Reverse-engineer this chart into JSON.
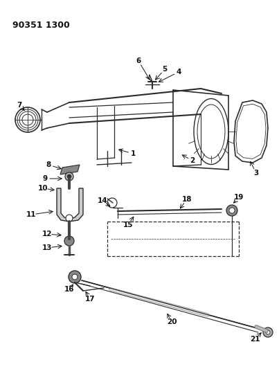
{
  "title": "90351 1300",
  "background_color": "#ffffff",
  "line_color": "#2a2a2a",
  "text_color": "#111111",
  "figsize": [
    4.03,
    5.33
  ],
  "dpi": 100
}
